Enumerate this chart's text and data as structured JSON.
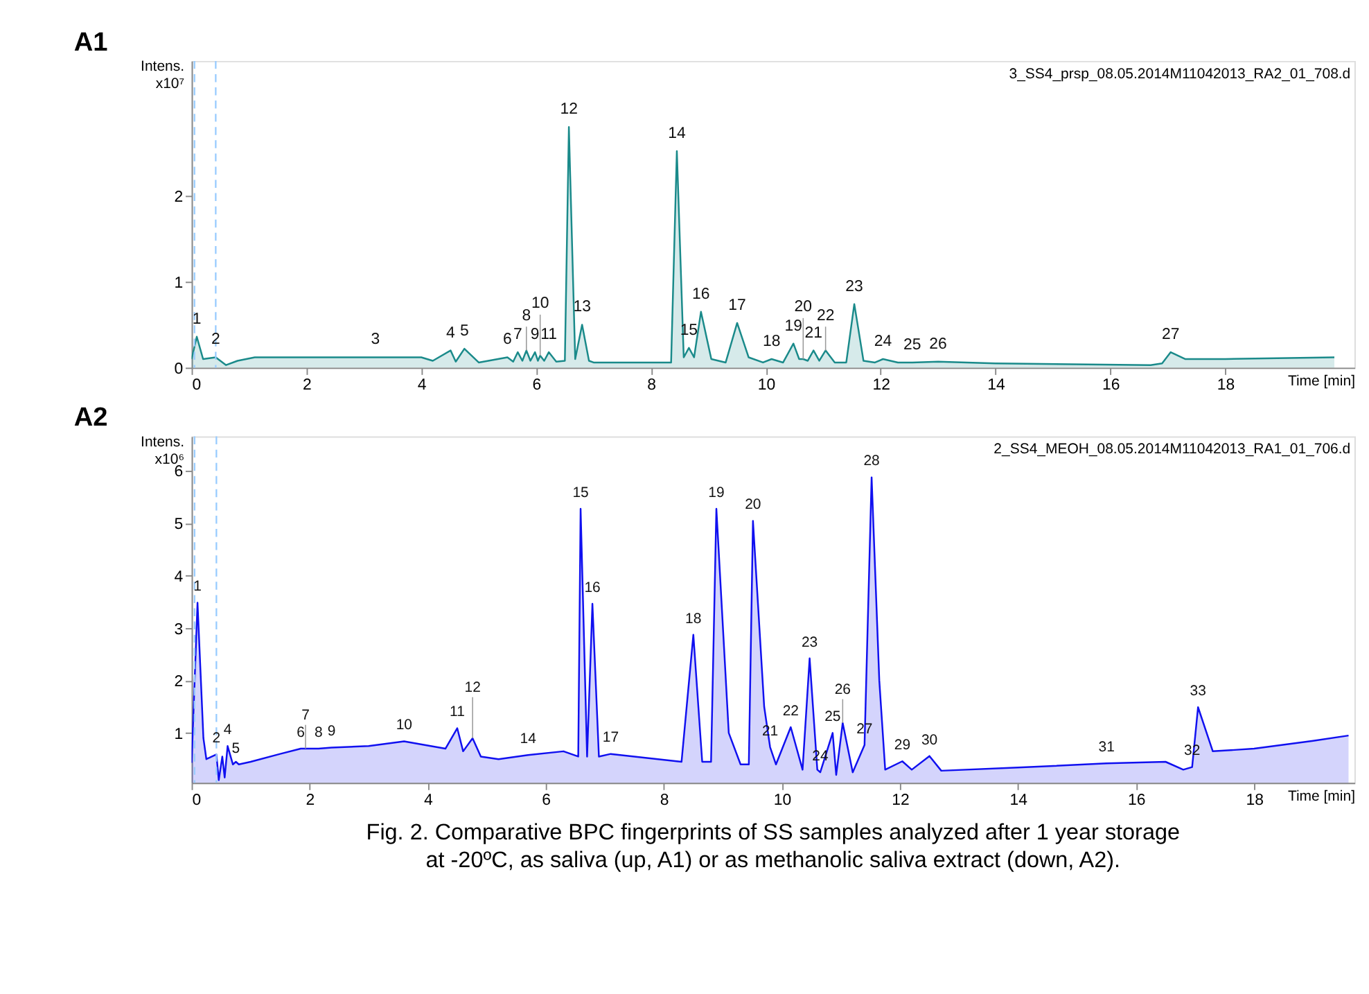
{
  "chart_data": [
    {
      "type": "area",
      "title": "A1",
      "ylabel": "Intens.\nx10⁷",
      "xlabel": "Time [min]",
      "x": [
        0,
        0.09,
        0.2,
        0.42,
        0.6,
        0.8,
        1.1,
        4.0,
        4.2,
        4.51,
        4.6,
        4.75,
        5.0,
        5.5,
        5.6,
        5.68,
        5.76,
        5.83,
        5.9,
        5.98,
        6.03,
        6.07,
        6.14,
        6.22,
        6.35,
        6.5,
        6.57,
        6.68,
        6.8,
        6.92,
        7.0,
        8.35,
        8.45,
        8.57,
        8.66,
        8.75,
        8.87,
        9.05,
        9.3,
        9.5,
        9.7,
        9.95,
        10.1,
        10.3,
        10.48,
        10.58,
        10.65,
        10.73,
        10.83,
        10.93,
        11.04,
        11.2,
        11.4,
        11.54,
        11.7,
        11.9,
        12.04,
        12.3,
        12.55,
        13.0,
        14.0,
        16.7,
        16.9,
        17.05,
        17.3,
        18.0,
        19.9
      ],
      "series": [
        {
          "color": "#1a8a8a",
          "values": [
            0.1,
            0.36,
            0.1,
            0.12,
            0.03,
            0.08,
            0.12,
            0.12,
            0.08,
            0.2,
            0.07,
            0.22,
            0.06,
            0.12,
            0.07,
            0.18,
            0.08,
            0.2,
            0.08,
            0.18,
            0.08,
            0.14,
            0.08,
            0.18,
            0.07,
            0.08,
            2.8,
            0.1,
            0.5,
            0.08,
            0.06,
            0.06,
            2.52,
            0.12,
            0.23,
            0.12,
            0.65,
            0.1,
            0.06,
            0.52,
            0.12,
            0.06,
            0.1,
            0.06,
            0.28,
            0.1,
            0.1,
            0.08,
            0.2,
            0.08,
            0.2,
            0.06,
            0.06,
            0.74,
            0.08,
            0.06,
            0.1,
            0.06,
            0.06,
            0.07,
            0.05,
            0.03,
            0.05,
            0.18,
            0.1,
            0.1,
            0.12
          ]
        }
      ],
      "xlim": [
        0,
        20.25
      ],
      "ylim": [
        0,
        3.57
      ],
      "xticks": [
        0,
        2,
        4,
        6,
        8,
        10,
        12,
        14,
        16,
        18
      ],
      "yticks": [
        0,
        1,
        2
      ],
      "ref_lines": [
        {
          "axis": "x",
          "value": 0.05,
          "color": "#99ccff",
          "line_style": "dashed"
        },
        {
          "axis": "x",
          "value": 0.42,
          "color": "#99ccff",
          "line_style": "dashed"
        }
      ],
      "annotations": [
        "3_SS4_prsp_08.05.2014M11042013_RA2_01_708.d",
        {
          "text": "1",
          "x": 0.09,
          "y": 0.36
        },
        {
          "text": "2",
          "x": 0.42,
          "y": 0.12
        },
        {
          "text": "3",
          "x": 3.2,
          "y": 0.12
        },
        {
          "text": "4",
          "x": 4.51,
          "y": 0.2
        },
        {
          "text": "5",
          "x": 4.75,
          "y": 0.22
        },
        {
          "text": "6",
          "x": 5.5,
          "y": 0.12
        },
        {
          "text": "7",
          "x": 5.68,
          "y": 0.18
        },
        {
          "text": "8",
          "x": 5.83,
          "y": 0.2
        },
        {
          "text": "9",
          "x": 5.98,
          "y": 0.18
        },
        {
          "text": "10",
          "x": 6.07,
          "y": 0.14
        },
        {
          "text": "11",
          "x": 6.22,
          "y": 0.18
        },
        {
          "text": "12",
          "x": 6.57,
          "y": 2.8
        },
        {
          "text": "13",
          "x": 6.8,
          "y": 0.5
        },
        {
          "text": "14",
          "x": 8.45,
          "y": 2.52
        },
        {
          "text": "15",
          "x": 8.66,
          "y": 0.23
        },
        {
          "text": "16",
          "x": 8.87,
          "y": 0.65
        },
        {
          "text": "17",
          "x": 9.5,
          "y": 0.52
        },
        {
          "text": "18",
          "x": 10.1,
          "y": 0.1
        },
        {
          "text": "19",
          "x": 10.48,
          "y": 0.28
        },
        {
          "text": "20",
          "x": 10.65,
          "y": 0.1
        },
        {
          "text": "21",
          "x": 10.83,
          "y": 0.2
        },
        {
          "text": "22",
          "x": 11.04,
          "y": 0.2
        },
        {
          "text": "23",
          "x": 11.54,
          "y": 0.74
        },
        {
          "text": "24",
          "x": 12.04,
          "y": 0.1
        },
        {
          "text": "25",
          "x": 12.55,
          "y": 0.06
        },
        {
          "text": "26",
          "x": 13.0,
          "y": 0.07
        },
        {
          "text": "27",
          "x": 17.05,
          "y": 0.18
        }
      ]
    },
    {
      "type": "area",
      "title": "A2",
      "ylabel": "Intens.\nx10⁶",
      "xlabel": "Time [min]",
      "x": [
        0,
        0.1,
        0.2,
        0.25,
        0.42,
        0.46,
        0.52,
        0.56,
        0.61,
        0.7,
        0.75,
        0.8,
        1.0,
        1.5,
        1.85,
        1.93,
        2.15,
        2.37,
        3.0,
        3.6,
        4.3,
        4.5,
        4.6,
        4.76,
        4.9,
        5.2,
        5.7,
        6.3,
        6.55,
        6.59,
        6.7,
        6.79,
        6.9,
        7.1,
        8.3,
        8.5,
        8.65,
        8.8,
        8.89,
        9.1,
        9.3,
        9.44,
        9.51,
        9.7,
        9.8,
        9.9,
        10.15,
        10.35,
        10.47,
        10.6,
        10.65,
        10.86,
        10.92,
        11.03,
        11.2,
        11.4,
        11.52,
        11.65,
        11.75,
        12.04,
        12.2,
        12.5,
        12.7,
        14.0,
        15.5,
        16.5,
        16.8,
        16.95,
        17.05,
        17.3,
        18.0,
        19.0,
        19.6
      ],
      "series": [
        {
          "color": "#1010f0",
          "values": [
            0.43,
            3.48,
            0.9,
            0.5,
            0.59,
            0.1,
            0.55,
            0.15,
            0.75,
            0.4,
            0.45,
            0.4,
            0.45,
            0.6,
            0.7,
            0.7,
            0.7,
            0.72,
            0.75,
            0.84,
            0.7,
            1.09,
            0.65,
            0.9,
            0.55,
            0.5,
            0.58,
            0.65,
            0.55,
            5.27,
            0.55,
            3.46,
            0.55,
            0.6,
            0.45,
            2.87,
            0.45,
            0.45,
            5.27,
            1.0,
            0.4,
            0.4,
            5.04,
            1.5,
            0.73,
            0.4,
            1.11,
            0.3,
            2.42,
            0.3,
            0.25,
            1.0,
            0.2,
            1.19,
            0.25,
            0.77,
            5.87,
            2.0,
            0.3,
            0.46,
            0.3,
            0.56,
            0.28,
            0.34,
            0.42,
            0.45,
            0.3,
            0.35,
            1.49,
            0.65,
            0.7,
            0.85,
            0.95
          ]
        }
      ],
      "xlim": [
        0,
        19.7
      ],
      "ylim": [
        0.05,
        6.65
      ],
      "xticks": [
        0,
        2,
        4,
        6,
        8,
        10,
        12,
        14,
        16,
        18
      ],
      "yticks": [
        1,
        2,
        3,
        4,
        5,
        6
      ],
      "ref_lines": [
        {
          "axis": "x",
          "value": 0.05,
          "color": "#99ccff",
          "line_style": "dashed"
        },
        {
          "axis": "x",
          "value": 0.42,
          "color": "#99ccff",
          "line_style": "dashed"
        }
      ],
      "annotations": [
        "2_SS4_MEOH_08.05.2014M11042013_RA1_01_706.d",
        "Fig. 2. Comparative BPC fingerprints of SS samples analyzed after 1 year storage\nat -20ºC, as saliva (up, A1) or as methanolic saliva extract (down, A2).",
        {
          "text": "1",
          "x": 0.1,
          "y": 3.48
        },
        {
          "text": "2",
          "x": 0.42,
          "y": 0.59
        },
        {
          "text": "4",
          "x": 0.61,
          "y": 0.75
        },
        {
          "text": "5",
          "x": 0.75,
          "y": 0.4
        },
        {
          "text": "6",
          "x": 1.85,
          "y": 0.7
        },
        {
          "text": "7",
          "x": 1.93,
          "y": 0.7
        },
        {
          "text": "8",
          "x": 2.15,
          "y": 0.7
        },
        {
          "text": "9",
          "x": 2.37,
          "y": 0.72
        },
        {
          "text": "10",
          "x": 3.6,
          "y": 0.84
        },
        {
          "text": "11",
          "x": 4.5,
          "y": 1.09
        },
        {
          "text": "12",
          "x": 4.76,
          "y": 0.9
        },
        {
          "text": "14",
          "x": 5.7,
          "y": 0.58
        },
        {
          "text": "15",
          "x": 6.59,
          "y": 5.27
        },
        {
          "text": "16",
          "x": 6.79,
          "y": 3.46
        },
        {
          "text": "17",
          "x": 7.1,
          "y": 0.6
        },
        {
          "text": "18",
          "x": 8.5,
          "y": 2.87
        },
        {
          "text": "19",
          "x": 8.89,
          "y": 5.27
        },
        {
          "text": "20",
          "x": 9.51,
          "y": 5.04
        },
        {
          "text": "21",
          "x": 9.8,
          "y": 0.73
        },
        {
          "text": "22",
          "x": 10.15,
          "y": 1.11
        },
        {
          "text": "23",
          "x": 10.47,
          "y": 2.42
        },
        {
          "text": "24",
          "x": 10.65,
          "y": 0.25
        },
        {
          "text": "25",
          "x": 10.86,
          "y": 1.0
        },
        {
          "text": "26",
          "x": 11.03,
          "y": 1.19
        },
        {
          "text": "27",
          "x": 11.4,
          "y": 0.77
        },
        {
          "text": "28",
          "x": 11.52,
          "y": 5.87
        },
        {
          "text": "29",
          "x": 12.04,
          "y": 0.46
        },
        {
          "text": "30",
          "x": 12.5,
          "y": 0.56
        },
        {
          "text": "31",
          "x": 15.5,
          "y": 0.42
        },
        {
          "text": "32",
          "x": 16.95,
          "y": 0.35
        },
        {
          "text": "33",
          "x": 17.05,
          "y": 1.49
        }
      ]
    }
  ]
}
